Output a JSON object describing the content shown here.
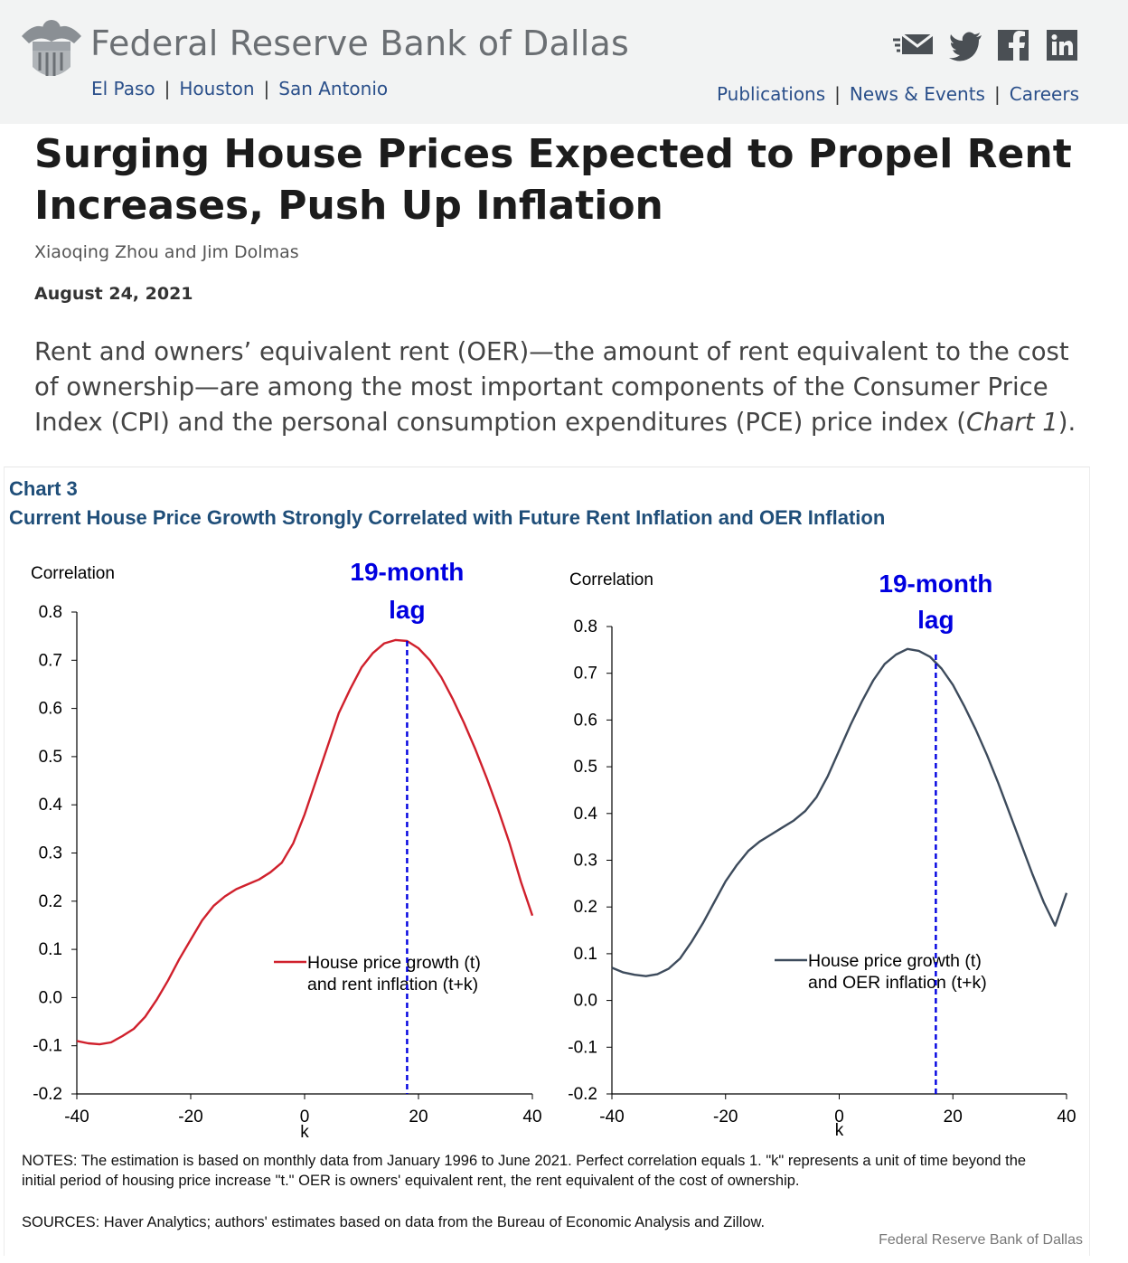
{
  "header": {
    "bank_name": "Federal Reserve Bank of Dallas",
    "branches": [
      "El Paso",
      "Houston",
      "San Antonio"
    ],
    "nav": [
      "Publications",
      "News & Events",
      "Careers"
    ],
    "social_icons": [
      "email-icon",
      "twitter-icon",
      "facebook-icon",
      "linkedin-icon"
    ]
  },
  "article": {
    "title": "Surging House Prices Expected to Propel Rent Increases, Push Up Inflation",
    "authors": "Xiaoqing Zhou and Jim Dolmas",
    "date": "August 24, 2021",
    "intro_text": "Rent and owners’ equivalent rent (OER)—the amount of rent equivalent to the cost of ownership—are among the most important components of the Consumer Price Index (CPI) and the personal consumption expenditures (PCE) price index (",
    "intro_link": "Chart 1",
    "intro_end": ")."
  },
  "chart_header": {
    "number": "Chart 3",
    "title": "Current House Price Growth Strongly Correlated with Future Rent Inflation and OER Inflation"
  },
  "chart_data": [
    {
      "type": "line",
      "ylabel": "Correlation",
      "xlabel": "k",
      "xlim": [
        -40,
        40
      ],
      "ylim": [
        -0.2,
        0.8
      ],
      "xticks": [
        "-40",
        "-20",
        "0",
        "20",
        "40"
      ],
      "yticks": [
        "-0.2",
        "-0.1",
        "0.0",
        "0.1",
        "0.2",
        "0.3",
        "0.4",
        "0.5",
        "0.6",
        "0.7",
        "0.8"
      ],
      "color": "#d0202c",
      "annotation": {
        "line1": "19-month",
        "line2": "lag",
        "x": 18,
        "color": "#0000e0"
      },
      "series": [
        {
          "name": "House price growth (t) and rent inflation (t+k)",
          "legend_lines": [
            "House price growth (t)",
            "and rent inflation (t+k)"
          ],
          "x": [
            -40,
            -38,
            -36,
            -34,
            -32,
            -30,
            -28,
            -26,
            -24,
            -22,
            -20,
            -18,
            -16,
            -14,
            -12,
            -10,
            -8,
            -6,
            -4,
            -2,
            0,
            2,
            4,
            6,
            8,
            10,
            12,
            14,
            16,
            18,
            20,
            22,
            24,
            26,
            28,
            30,
            32,
            34,
            36,
            38,
            40
          ],
          "y": [
            -0.09,
            -0.095,
            -0.097,
            -0.093,
            -0.08,
            -0.065,
            -0.04,
            -0.005,
            0.035,
            0.08,
            0.12,
            0.16,
            0.19,
            0.21,
            0.225,
            0.235,
            0.245,
            0.26,
            0.28,
            0.32,
            0.38,
            0.45,
            0.52,
            0.59,
            0.64,
            0.685,
            0.715,
            0.735,
            0.742,
            0.74,
            0.725,
            0.7,
            0.665,
            0.62,
            0.57,
            0.515,
            0.455,
            0.39,
            0.32,
            0.24,
            0.17
          ]
        }
      ]
    },
    {
      "type": "line",
      "ylabel": "Correlation",
      "xlabel": "k",
      "xlim": [
        -40,
        40
      ],
      "ylim": [
        -0.2,
        0.8
      ],
      "xticks": [
        "-40",
        "-20",
        "0",
        "20",
        "40"
      ],
      "yticks": [
        "-0.2",
        "-0.1",
        "0.0",
        "0.1",
        "0.2",
        "0.3",
        "0.4",
        "0.5",
        "0.6",
        "0.7",
        "0.8"
      ],
      "color": "#3d4b5c",
      "annotation": {
        "line1": "19-month",
        "line2": "lag",
        "x": 17,
        "color": "#0000e0"
      },
      "series": [
        {
          "name": "House price growth (t) and OER inflation (t+k)",
          "legend_lines": [
            "House price growth (t)",
            "and OER inflation (t+k)"
          ],
          "x": [
            -40,
            -38,
            -36,
            -34,
            -32,
            -30,
            -28,
            -26,
            -24,
            -22,
            -20,
            -18,
            -16,
            -14,
            -12,
            -10,
            -8,
            -6,
            -4,
            -2,
            0,
            2,
            4,
            6,
            8,
            10,
            12,
            14,
            16,
            18,
            20,
            22,
            24,
            26,
            28,
            30,
            32,
            34,
            36,
            38,
            40
          ],
          "y": [
            0.07,
            0.06,
            0.055,
            0.052,
            0.056,
            0.068,
            0.09,
            0.125,
            0.165,
            0.21,
            0.255,
            0.29,
            0.32,
            0.34,
            0.355,
            0.37,
            0.385,
            0.405,
            0.435,
            0.48,
            0.535,
            0.59,
            0.64,
            0.685,
            0.72,
            0.74,
            0.752,
            0.748,
            0.735,
            0.71,
            0.675,
            0.63,
            0.58,
            0.525,
            0.465,
            0.4,
            0.335,
            0.27,
            0.21,
            0.16,
            0.23
          ]
        }
      ]
    }
  ],
  "footer": {
    "notes": "NOTES: The estimation is based on monthly data from January 1996 to June 2021. Perfect correlation equals 1. \"k\" represents a unit of time beyond the initial period of housing price increase \"t.\" OER is owners' equivalent rent, the rent equivalent of the cost of ownership.",
    "sources": "SOURCES: Haver Analytics; authors' estimates based on data from the Bureau of Economic Analysis and Zillow.",
    "credit": "Federal Reserve Bank of Dallas"
  }
}
